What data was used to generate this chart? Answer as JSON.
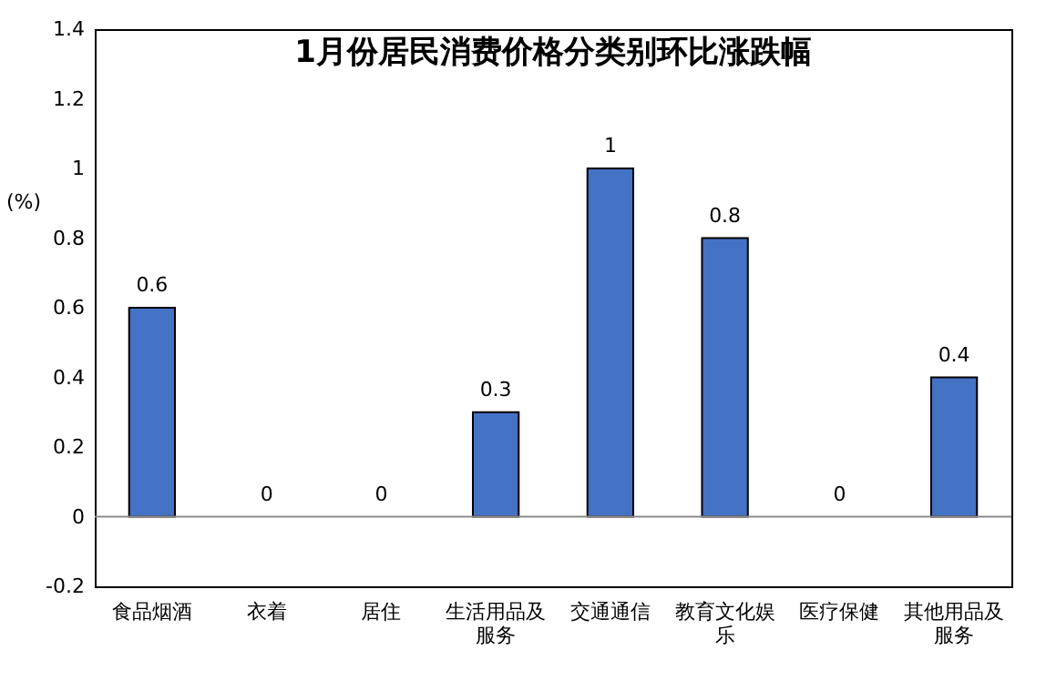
{
  "chart_data": {
    "type": "bar",
    "title": "1月份居民消费价格分类别环比涨跌幅",
    "ylabel": "(%)",
    "categories": [
      "食品烟酒",
      "衣着",
      "居住",
      "生活用品及服务",
      "交通通信",
      "教育文化娱乐",
      "医疗保健",
      "其他用品及服务"
    ],
    "values": [
      0.6,
      0,
      0,
      0.3,
      1,
      0.8,
      0,
      0.4
    ],
    "color": "#4472c4",
    "ylim": [
      -0.2,
      1.4
    ],
    "yticks": [
      -0.2,
      0,
      0.2,
      0.4,
      0.6,
      0.8,
      1,
      1.2,
      1.4
    ],
    "ref_lines": [
      {
        "axis": "y",
        "value": 0,
        "color": "#8c8c8c"
      }
    ],
    "grid": false,
    "data_labels": true
  }
}
